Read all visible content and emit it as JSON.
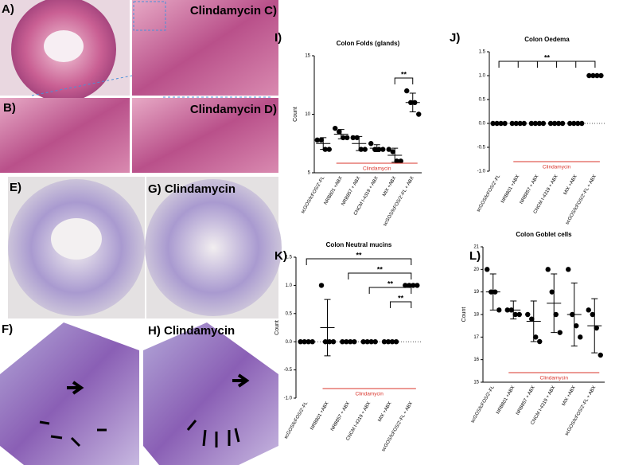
{
  "panels": [
    "A)",
    "Clindamycin C)",
    "B)",
    "Clindamycin D)",
    "E)",
    "G) Clindamycin",
    "F)",
    "H) Clindamycin"
  ],
  "chart_data": [
    {
      "type": "dot",
      "panel_label": "I)",
      "title": "Colon Folds (glands)",
      "y_label": "Count",
      "categories": [
        "scGOS/lcFOS/2'-FL",
        "NRB801 +ABX",
        "NRB857 + ABX",
        "CNCM I-4319 + ABX",
        "MIX +ABX",
        "scGOS/lcFOS/2'-FL + ABX"
      ],
      "points": [
        [
          7.8,
          7.8,
          7,
          7
        ],
        [
          8.8,
          8.5,
          8,
          8
        ],
        [
          8,
          8,
          7,
          7
        ],
        [
          7.5,
          7,
          7,
          7
        ],
        [
          7,
          6.8,
          6,
          6
        ],
        [
          12,
          11,
          11,
          10
        ]
      ],
      "means": [
        7.5,
        8.3,
        7.5,
        7.1,
        6.5,
        11
      ],
      "errors": [
        0.5,
        0.4,
        0.6,
        0.3,
        0.6,
        0.8
      ],
      "ylim": [
        5,
        15
      ],
      "yticks": [
        5,
        10,
        15
      ],
      "zero_line": false,
      "brackets": [
        {
          "from": 4,
          "to": 5,
          "label": "**"
        }
      ],
      "comb": false,
      "annotation": {
        "text": "Clindamycin",
        "from": 1,
        "to": 5
      },
      "color": "#000000"
    },
    {
      "type": "dot",
      "panel_label": "J)",
      "title": "Colon Oedema",
      "categories": [
        "scGOS/lcFOS/2'-FL",
        "NRB801 +ABX",
        "NRB857 + ABX",
        "CNCM I-4319 + ABX",
        "MIX +ABX",
        "scGOS/lcFOS/2'-FL + ABX"
      ],
      "points": [
        [
          0,
          0,
          0,
          0
        ],
        [
          0,
          0,
          0,
          0
        ],
        [
          0,
          0,
          0,
          0
        ],
        [
          0,
          0,
          0,
          0
        ],
        [
          0,
          0,
          0,
          0
        ],
        [
          1,
          1,
          1,
          1
        ]
      ],
      "means": [
        0,
        0,
        0,
        0,
        0,
        1
      ],
      "errors": [
        0,
        0,
        0,
        0,
        0,
        0
      ],
      "ylim": [
        -1,
        1.5
      ],
      "yticks": [
        {
          "value": -1,
          "label": "-1.0"
        },
        -0.5,
        {
          "value": 0,
          "label": "0.0"
        },
        0.5,
        {
          "value": 1,
          "label": "1.0"
        },
        1.5
      ],
      "zero_line": true,
      "brackets": [
        {
          "from": 0,
          "to": 5,
          "label": "**"
        }
      ],
      "comb": true,
      "annotation": {
        "text": "Clindamycin",
        "from": 1,
        "to": 5
      },
      "color": "#000000"
    },
    {
      "type": "dot",
      "panel_label": "K)",
      "title": "Colon Neutral mucins",
      "y_label": "Count",
      "categories": [
        "scGOS/lcFOS/2'-FL",
        "NRB801 +ABX",
        "NRB857 + ABX",
        "CNCM I-4319 + ABX",
        "MIX +ABX",
        "scGOS/lcFOS/2'-FL + ABX"
      ],
      "points": [
        [
          0,
          0,
          0,
          0
        ],
        [
          1,
          0,
          0,
          0
        ],
        [
          0,
          0,
          0,
          0
        ],
        [
          0,
          0,
          0,
          0
        ],
        [
          0,
          0,
          0,
          0
        ],
        [
          1,
          1,
          1,
          1
        ]
      ],
      "means": [
        0,
        0.25,
        0,
        0,
        0,
        1
      ],
      "errors": [
        0,
        0.5,
        0,
        0,
        0,
        0
      ],
      "ylim": [
        -1,
        1.5
      ],
      "yticks": [
        {
          "value": -1,
          "label": "-1.0"
        },
        -0.5,
        {
          "value": 0,
          "label": "0.0"
        },
        0.5,
        {
          "value": 1,
          "label": "1.0"
        },
        1.5
      ],
      "zero_line": true,
      "brackets": [
        {
          "from": 0,
          "to": 5,
          "label": "**"
        },
        {
          "from": 2,
          "to": 5,
          "label": "**"
        },
        {
          "from": 3,
          "to": 5,
          "label": "**"
        },
        {
          "from": 4,
          "to": 5,
          "label": "**"
        }
      ],
      "comb": false,
      "annotation": {
        "text": "Clindamycin",
        "from": 1,
        "to": 5
      },
      "color": "#000000"
    },
    {
      "type": "dot",
      "panel_label": "L)",
      "title": "Colon Goblet cells",
      "y_label": "Count",
      "categories": [
        "scGOS/lcFOS/2'-FL",
        "NRB801 +ABX",
        "NRB857 + ABX",
        "CNCM I-4319 + ABX",
        "MIX +ABX",
        "scGOS/lcFOS/2'-FL + ABX"
      ],
      "points": [
        [
          20,
          19,
          19,
          18.2
        ],
        [
          18.2,
          18.2,
          18,
          18
        ],
        [
          18,
          17.8,
          17,
          16.8
        ],
        [
          20,
          19,
          18,
          17.2
        ],
        [
          20,
          18,
          17.5,
          17
        ],
        [
          18.2,
          18,
          17.4,
          16.2
        ]
      ],
      "means": [
        19,
        18.2,
        17.7,
        18.5,
        18,
        17.5
      ],
      "errors": [
        0.8,
        0.4,
        0.9,
        1.3,
        1.4,
        1.2
      ],
      "ylim": [
        15,
        21
      ],
      "yticks": [
        15,
        16,
        17,
        18,
        19,
        20,
        21
      ],
      "zero_line": false,
      "brackets": [],
      "comb": false,
      "annotation": {
        "text": "Clindamycin",
        "from": 1,
        "to": 5
      },
      "color": "#000000"
    }
  ]
}
